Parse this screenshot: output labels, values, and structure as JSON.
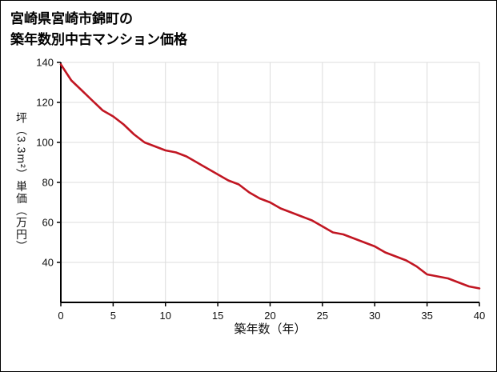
{
  "title": {
    "line1": "宮崎県宮崎市錦町の",
    "line2": "築年数別中古マンション価格"
  },
  "chart_data": {
    "type": "line",
    "title": "宮崎県宮崎市錦町の築年数別中古マンション価格",
    "xlabel": "築年数（年）",
    "ylabel": "坪（3.3m²）単価（万円）",
    "x": [
      0,
      1,
      2,
      3,
      4,
      5,
      6,
      7,
      8,
      9,
      10,
      11,
      12,
      13,
      14,
      15,
      16,
      17,
      18,
      19,
      20,
      21,
      22,
      23,
      24,
      25,
      26,
      27,
      28,
      29,
      30,
      31,
      32,
      33,
      34,
      35,
      36,
      37,
      38,
      39,
      40
    ],
    "values": [
      139,
      131,
      126,
      121,
      116,
      113,
      109,
      104,
      100,
      98,
      96,
      95,
      93,
      90,
      87,
      84,
      81,
      79,
      75,
      72,
      70,
      67,
      65,
      63,
      61,
      58,
      55,
      54,
      52,
      50,
      48,
      45,
      43,
      41,
      38,
      34,
      33,
      32,
      30,
      28,
      27
    ],
    "xlim": [
      0,
      40
    ],
    "ylim": [
      20,
      140
    ],
    "xticks": [
      0,
      5,
      10,
      15,
      20,
      25,
      30,
      35,
      40
    ],
    "yticks": [
      40,
      60,
      80,
      100,
      120,
      140
    ],
    "grid": true,
    "legend": "none",
    "line_color": "#c11622",
    "grid_color": "#dcdcdc",
    "axis_color": "#000000"
  }
}
